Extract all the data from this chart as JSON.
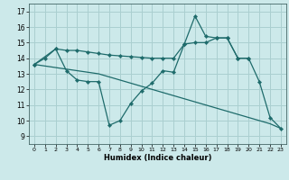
{
  "title": "",
  "xlabel": "Humidex (Indice chaleur)",
  "background_color": "#cce9ea",
  "grid_color": "#aacfd0",
  "line_color": "#1e6b6b",
  "xlim": [
    -0.5,
    23.5
  ],
  "ylim": [
    8.5,
    17.5
  ],
  "xticks": [
    0,
    1,
    2,
    3,
    4,
    5,
    6,
    7,
    8,
    9,
    10,
    11,
    12,
    13,
    14,
    15,
    16,
    17,
    18,
    19,
    20,
    21,
    22,
    23
  ],
  "yticks": [
    9,
    10,
    11,
    12,
    13,
    14,
    15,
    16,
    17
  ],
  "line1_x": [
    0,
    1,
    2,
    3,
    4,
    5,
    6,
    7,
    8,
    9,
    10,
    11,
    12,
    13,
    14,
    15,
    16,
    17,
    18,
    19,
    20,
    21,
    22,
    23
  ],
  "line1_y": [
    13.6,
    14.0,
    14.6,
    13.2,
    12.6,
    12.5,
    12.5,
    9.7,
    10.0,
    11.1,
    11.9,
    12.4,
    13.2,
    13.1,
    14.9,
    16.7,
    15.4,
    15.3,
    15.3,
    14.0,
    14.0,
    12.5,
    10.2,
    9.5
  ],
  "line2_x": [
    0,
    2,
    3,
    4,
    5,
    6,
    7,
    8,
    9,
    10,
    11,
    12,
    13,
    14,
    15,
    16,
    17,
    18,
    19,
    20
  ],
  "line2_y": [
    13.6,
    14.6,
    14.5,
    14.5,
    14.4,
    14.3,
    14.2,
    14.15,
    14.1,
    14.05,
    14.0,
    14.0,
    14.0,
    14.9,
    15.0,
    15.0,
    15.3,
    15.3,
    14.0,
    14.0
  ],
  "line3_x": [
    0,
    1,
    2,
    3,
    4,
    5,
    6,
    7,
    8,
    9,
    10,
    11,
    12,
    13,
    14,
    15,
    16,
    17,
    18,
    19,
    20,
    21,
    22,
    23
  ],
  "line3_y": [
    13.6,
    13.5,
    13.4,
    13.3,
    13.2,
    13.1,
    13.0,
    12.8,
    12.6,
    12.4,
    12.2,
    12.0,
    11.8,
    11.6,
    11.4,
    11.2,
    11.0,
    10.8,
    10.6,
    10.4,
    10.2,
    10.0,
    9.8,
    9.5
  ]
}
